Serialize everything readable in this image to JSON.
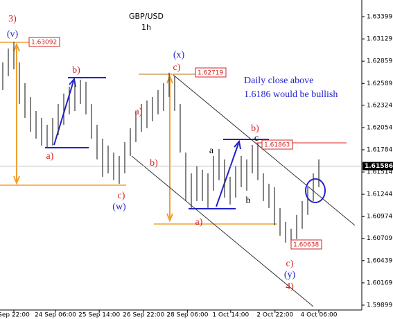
{
  "chart_data": {
    "type": "ohlc",
    "title": "GBP/USD",
    "subtitle": "1h",
    "x": [
      0,
      1,
      2,
      3,
      4,
      5,
      6,
      7,
      8,
      9,
      10,
      11,
      12,
      13,
      14,
      15,
      16,
      17,
      18,
      19,
      20,
      21,
      22,
      23,
      24,
      25,
      26,
      27,
      28,
      29,
      30,
      31,
      32,
      33,
      34,
      35,
      36,
      37,
      38,
      39,
      40,
      41,
      42,
      43,
      44,
      45,
      46,
      47,
      48,
      49,
      50,
      51,
      52,
      53,
      54,
      55,
      56,
      57
    ],
    "high": [
      1.62844,
      1.63012,
      1.63092,
      1.62844,
      1.62592,
      1.62424,
      1.62255,
      1.62171,
      1.62087,
      1.62171,
      1.62339,
      1.62466,
      1.6255,
      1.62592,
      1.62634,
      1.62609,
      1.62339,
      1.62087,
      1.61919,
      1.61835,
      1.61751,
      1.61709,
      1.61877,
      1.62045,
      1.62255,
      1.62339,
      1.62382,
      1.62424,
      1.62508,
      1.62592,
      1.62719,
      1.62676,
      1.62339,
      1.61751,
      1.61498,
      1.61583,
      1.61541,
      1.61498,
      1.61709,
      1.61793,
      1.61667,
      1.61456,
      1.61583,
      1.61709,
      1.61667,
      1.61843,
      1.61863,
      1.61498,
      1.61372,
      1.6133,
      1.61078,
      1.6091,
      1.60826,
      1.60994,
      1.61162,
      1.6133,
      1.61498,
      1.61667
    ],
    "low": [
      1.62508,
      1.62676,
      1.6276,
      1.62339,
      1.62171,
      1.62003,
      1.61919,
      1.61835,
      1.6181,
      1.61835,
      1.61961,
      1.62087,
      1.62213,
      1.62255,
      1.62339,
      1.62213,
      1.61919,
      1.61667,
      1.61456,
      1.61498,
      1.61414,
      1.61372,
      1.61498,
      1.61709,
      1.61877,
      1.62003,
      1.62045,
      1.62129,
      1.62213,
      1.62255,
      1.62424,
      1.62255,
      1.61751,
      1.61162,
      1.61078,
      1.61162,
      1.61162,
      1.61078,
      1.61288,
      1.61414,
      1.61204,
      1.6112,
      1.61204,
      1.6133,
      1.61288,
      1.61498,
      1.61414,
      1.61162,
      1.61078,
      1.60868,
      1.60742,
      1.60657,
      1.60638,
      1.607,
      1.60826,
      1.60994,
      1.61162,
      1.6133
    ],
    "color": "#333333",
    "xlim": [
      -0.5,
      64.75
    ],
    "xticks": [
      {
        "value": 2,
        "label": "Sep 22:00"
      },
      {
        "value": 9.5,
        "label": "24 Sep 06:00"
      },
      {
        "value": 17.4,
        "label": "25 Sep 14:00"
      },
      {
        "value": 25.4,
        "label": "26 Sep 22:00"
      },
      {
        "value": 33.3,
        "label": "28 Sep 06:00"
      },
      {
        "value": 41.1,
        "label": "1 Oct 14:00"
      },
      {
        "value": 49.1,
        "label": "2 Oct 22:00"
      },
      {
        "value": 57,
        "label": "4 Oct 06:00"
      }
    ],
    "ylim": [
      1.5984,
      1.63601
    ],
    "yticks": [
      1.63399,
      1.63129,
      1.62859,
      1.62589,
      1.62324,
      1.62054,
      1.61784,
      1.61514,
      1.61244,
      1.60974,
      1.60709,
      1.60439,
      1.60169,
      1.59899
    ],
    "last_price": 1.61586,
    "price_labels": [
      1.63092,
      1.62719,
      1.61863,
      1.60638
    ],
    "annotations": [
      {
        "text": "3)",
        "color": "#d42020"
      },
      {
        "text": "(v)",
        "color": "#2222cc"
      },
      {
        "text": "b)",
        "color": "#d42020"
      },
      {
        "text": "a)",
        "color": "#d42020"
      },
      {
        "text": "c)",
        "color": "#d42020"
      },
      {
        "text": "(w)",
        "color": "#2222cc"
      },
      {
        "text": "a)",
        "color": "#d42020"
      },
      {
        "text": "b)",
        "color": "#d42020"
      },
      {
        "text": "(x)",
        "color": "#2222cc"
      },
      {
        "text": "c)",
        "color": "#d42020"
      },
      {
        "text": "a",
        "color": "#000000"
      },
      {
        "text": "b",
        "color": "#000000"
      },
      {
        "text": "c",
        "color": "#000000"
      },
      {
        "text": "b)",
        "color": "#d42020"
      },
      {
        "text": "a)",
        "color": "#d42020"
      },
      {
        "text": "c)",
        "color": "#d42020"
      },
      {
        "text": "(y)",
        "color": "#2222cc"
      },
      {
        "text": "4)",
        "color": "#d42020"
      },
      {
        "text": "Daily close above",
        "color": "#2222cc"
      },
      {
        "text": "1.6186 would be bullish",
        "color": "#2222cc"
      }
    ]
  }
}
